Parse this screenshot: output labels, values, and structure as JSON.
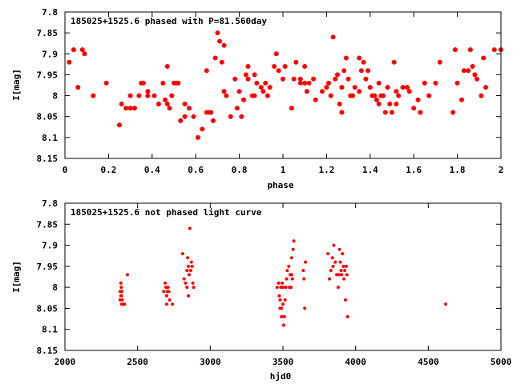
{
  "chart_data": [
    {
      "type": "scatter",
      "title": "185025+1525.6 phased with P=81.560day",
      "xlabel": "phase",
      "ylabel": "I[mag]",
      "xlim": [
        0,
        2
      ],
      "ylim": [
        7.8,
        8.15
      ],
      "y_inverted": true,
      "grid": false,
      "marker_color": "#ff0000",
      "xticks": [
        "0",
        "0.2",
        "0.4",
        "0.6",
        "0.8",
        "1",
        "1.2",
        "1.4",
        "1.6",
        "1.8",
        "2"
      ],
      "yticks": [
        "7.8",
        "7.85",
        "7.9",
        "7.95",
        "8",
        "8.05",
        "8.1",
        "8.15"
      ],
      "series": [
        {
          "x": [
            0.02,
            0.04,
            0.06,
            0.08,
            0.13,
            0.25,
            0.26,
            0.28,
            0.3,
            0.3,
            0.32,
            0.34,
            0.35,
            0.36,
            0.38,
            0.41,
            0.43,
            0.45,
            0.46,
            0.47,
            0.48,
            0.49,
            0.51,
            0.52,
            0.53,
            0.55,
            0.55,
            0.57,
            0.59,
            0.61,
            0.63,
            0.65,
            0.66,
            0.67,
            0.68,
            0.69,
            0.7,
            0.71,
            0.72,
            0.73,
            0.74,
            0.76,
            0.78,
            0.8,
            0.81,
            0.82,
            0.83,
            0.84,
            0.86,
            0.87,
            0.87,
            0.88,
            0.9,
            0.91,
            0.92,
            0.93,
            0.94,
            0.96,
            0.97,
            0.98,
            1.0,
            1.01,
            1.04,
            1.05,
            1.06,
            1.08,
            1.1,
            1.1,
            1.11,
            1.12,
            1.15,
            1.18,
            1.2,
            1.21,
            1.22,
            1.23,
            1.24,
            1.25,
            1.26,
            1.27,
            1.28,
            1.29,
            1.3,
            1.31,
            1.32,
            1.33,
            1.35,
            1.36,
            1.37,
            1.38,
            1.39,
            1.4,
            1.41,
            1.42,
            1.43,
            1.44,
            1.45,
            1.46,
            1.47,
            1.48,
            1.49,
            1.5,
            1.51,
            1.52,
            1.53,
            1.55,
            1.58,
            1.6,
            1.62,
            1.63,
            1.65,
            1.67,
            1.7,
            1.72,
            1.78,
            1.79,
            1.8,
            1.82,
            1.83,
            1.85,
            1.86,
            1.87,
            1.88,
            1.89,
            1.91,
            1.92,
            1.93,
            1.97,
            2.0,
            0.09,
            0.19,
            0.38,
            0.47,
            0.5,
            0.65,
            0.73,
            0.79,
            0.84,
            1.08,
            1.14,
            1.27,
            1.35,
            1.44,
            1.52,
            1.57
          ],
          "y": [
            7.92,
            7.89,
            7.98,
            7.89,
            8.0,
            8.07,
            8.02,
            8.03,
            8.03,
            8.0,
            8.03,
            8.0,
            7.97,
            7.97,
            7.99,
            8.0,
            8.02,
            7.97,
            8.01,
            8.02,
            8.03,
            8.0,
            7.97,
            7.97,
            8.06,
            8.05,
            8.02,
            8.03,
            8.05,
            8.1,
            8.08,
            8.04,
            8.04,
            8.04,
            8.06,
            7.91,
            7.85,
            7.87,
            7.92,
            7.99,
            8.0,
            8.05,
            7.96,
            7.99,
            8.05,
            8.01,
            7.95,
            7.96,
            8.0,
            7.95,
            8.0,
            7.97,
            7.98,
            7.99,
            7.97,
            8.0,
            7.98,
            7.93,
            7.9,
            7.94,
            7.96,
            7.93,
            8.03,
            7.96,
            7.92,
            7.96,
            7.93,
            7.97,
            7.99,
            7.97,
            8.01,
            7.99,
            7.98,
            7.97,
            8.0,
            7.86,
            7.96,
            7.95,
            8.02,
            8.04,
            7.94,
            7.91,
            7.96,
            8.0,
            8.0,
            7.98,
            7.91,
            7.94,
            7.92,
            7.96,
            7.94,
            7.98,
            8.0,
            8.0,
            8.01,
            8.02,
            8.0,
            8.0,
            8.04,
            7.98,
            8.02,
            8.04,
            7.92,
            8.02,
            8.0,
            7.98,
            7.99,
            8.03,
            8.01,
            8.04,
            7.97,
            8.0,
            7.97,
            7.92,
            8.04,
            7.89,
            7.97,
            8.01,
            7.94,
            7.94,
            7.89,
            7.93,
            7.95,
            7.96,
            8.0,
            7.91,
            7.98,
            7.89,
            7.89,
            7.9,
            7.97,
            8.0,
            7.93,
            7.97,
            7.94,
            7.88,
            8.03,
            7.93,
            7.97,
            7.96,
            7.98,
            7.99,
            7.97,
            7.99,
            7.98
          ]
        }
      ]
    },
    {
      "type": "scatter",
      "title": "185025+1525.6 not phased light curve",
      "xlabel": "hjd0",
      "ylabel": "I[mag]",
      "xlim": [
        2000,
        5000
      ],
      "ylim": [
        7.8,
        8.15
      ],
      "y_inverted": true,
      "grid": false,
      "marker_color": "#ff0000",
      "xticks": [
        "2000",
        "2500",
        "3000",
        "3500",
        "4000",
        "4500",
        "5000"
      ],
      "yticks": [
        "7.8",
        "7.85",
        "7.9",
        "7.95",
        "8",
        "8.05",
        "8.1",
        "8.15"
      ],
      "series": [
        {
          "x": [
            2380,
            2380,
            2385,
            2385,
            2388,
            2390,
            2390,
            2392,
            2395,
            2400,
            2405,
            2410,
            2430,
            2680,
            2690,
            2695,
            2700,
            2700,
            2705,
            2710,
            2715,
            2720,
            2740,
            2810,
            2820,
            2830,
            2840,
            2840,
            2845,
            2850,
            2855,
            2860,
            2865,
            2870,
            2875,
            2880,
            2885,
            2850,
            3460,
            3470,
            3475,
            3480,
            3480,
            3485,
            3490,
            3490,
            3495,
            3500,
            3500,
            3505,
            3510,
            3515,
            3520,
            3525,
            3530,
            3540,
            3545,
            3550,
            3555,
            3560,
            3560,
            3565,
            3570,
            3575,
            3640,
            3645,
            3650,
            3655,
            3810,
            3820,
            3830,
            3840,
            3845,
            3850,
            3860,
            3870,
            3880,
            3885,
            3890,
            3895,
            3900,
            3905,
            3910,
            3915,
            3920,
            3925,
            3930,
            3935,
            3940,
            3945,
            4620
          ],
          "y": [
            8.01,
            8.03,
            7.99,
            8.02,
            8.0,
            8.02,
            8.04,
            8.01,
            8.03,
            8.04,
            8.04,
            8.04,
            7.97,
            8.01,
            7.99,
            8.0,
            8.02,
            8.04,
            8.01,
            8.0,
            8.01,
            8.03,
            8.04,
            7.92,
            7.98,
            7.99,
            7.96,
            8.0,
            7.93,
            7.95,
            7.97,
            7.86,
            7.96,
            7.94,
            7.95,
            7.99,
            8.0,
            8.02,
            8.0,
            7.99,
            8.02,
            8.03,
            8.05,
            8.0,
            8.07,
            8.05,
            7.99,
            8.0,
            8.04,
            8.09,
            8.07,
            8.03,
            8.0,
            7.98,
            7.96,
            7.95,
            8.0,
            7.97,
            8.0,
            7.93,
            7.97,
            7.98,
            7.91,
            7.89,
            7.96,
            7.98,
            8.05,
            7.94,
            7.92,
            7.98,
            7.96,
            7.93,
            7.95,
            7.9,
            7.94,
            7.97,
            8.0,
            7.97,
            7.91,
            7.94,
            7.96,
            7.97,
            7.92,
            7.95,
            7.98,
            7.96,
            8.03,
            7.95,
            7.97,
            8.07,
            8.04
          ]
        }
      ]
    }
  ]
}
